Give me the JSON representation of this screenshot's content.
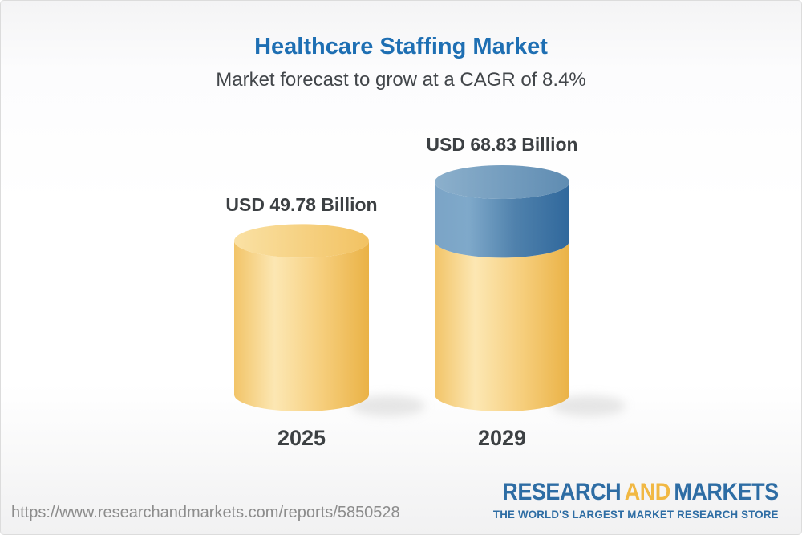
{
  "header": {
    "title": "Healthcare Staffing Market",
    "subtitle": "Market forecast to grow at a CAGR of 8.4%"
  },
  "chart_data": {
    "type": "bar",
    "variant": "3d-cylinder",
    "title": "Healthcare Staffing Market",
    "subtitle": "Market forecast to grow at a CAGR of 8.4%",
    "categories": [
      "2025",
      "2029"
    ],
    "values": [
      49.78,
      68.83
    ],
    "value_labels": [
      "USD 49.78 Billion",
      "USD 68.83 Billion"
    ],
    "base_value": 49.78,
    "unit": "USD Billion",
    "cagr_percent": 8.4,
    "legend": "none",
    "axes": "none",
    "colors": {
      "base_segment": "#F5CB74",
      "growth_segment": "#47789F",
      "shadow": "#CFCFCF"
    }
  },
  "footer": {
    "url": "https://www.researchandmarkets.com/reports/5850528",
    "logo": {
      "line1_part1": "RESEARCH",
      "line1_part2": "AND",
      "line1_part3": "MARKETS",
      "tagline": "THE WORLD'S LARGEST MARKET RESEARCH STORE",
      "brand_blue": "#2E6DA4",
      "brand_gold": "#F1B843"
    }
  },
  "style": {
    "title_color": "#1E6FB3",
    "text_dark": "#3C4043",
    "url_color": "#8C8C8C"
  }
}
